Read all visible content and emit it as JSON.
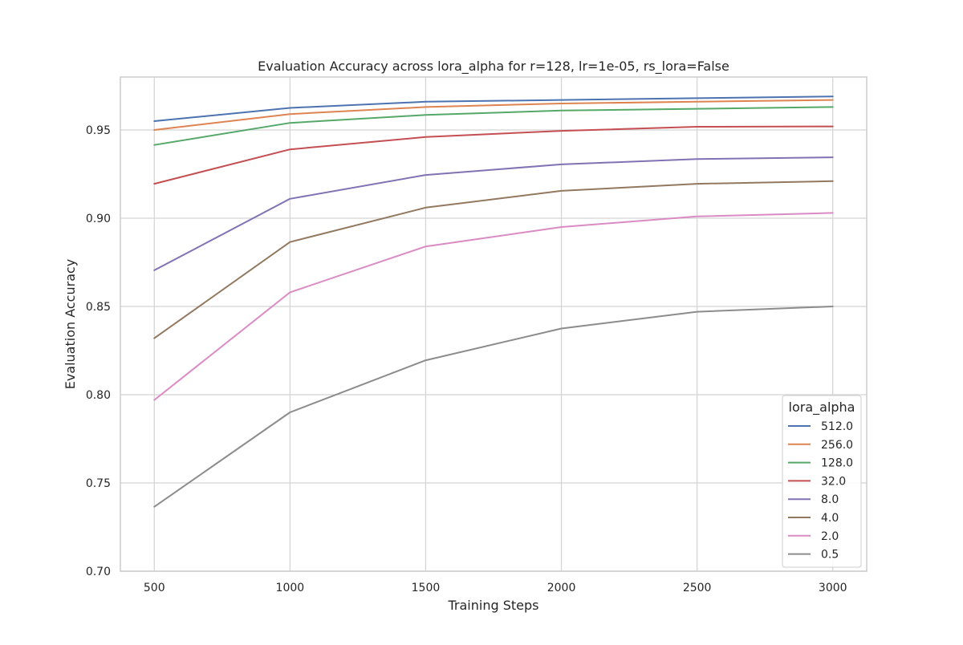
{
  "chart_data": {
    "type": "line",
    "title": "Evaluation Accuracy across lora_alpha for r=128, lr=1e-05, rs_lora=False",
    "xlabel": "Training Steps",
    "ylabel": "Evaluation Accuracy",
    "x": [
      500,
      1000,
      1500,
      2000,
      2500,
      3000
    ],
    "xlim": [
      375,
      3125
    ],
    "ylim": [
      0.7,
      0.98
    ],
    "xticks": [
      "500",
      "1000",
      "1500",
      "2000",
      "2500",
      "3000"
    ],
    "yticks": [
      "0.70",
      "0.75",
      "0.80",
      "0.85",
      "0.90",
      "0.95"
    ],
    "grid": true,
    "legend": {
      "title": "lora_alpha",
      "position": "lower-right"
    },
    "series": [
      {
        "name": "512.0",
        "color": "#4C72B0",
        "values": [
          0.955,
          0.9625,
          0.966,
          0.967,
          0.968,
          0.969
        ]
      },
      {
        "name": "256.0",
        "color": "#DD8452",
        "values": [
          0.95,
          0.959,
          0.963,
          0.965,
          0.966,
          0.967
        ]
      },
      {
        "name": "128.0",
        "color": "#55A868",
        "values": [
          0.9415,
          0.954,
          0.9585,
          0.961,
          0.962,
          0.963
        ]
      },
      {
        "name": "32.0",
        "color": "#C44E52",
        "values": [
          0.9195,
          0.939,
          0.946,
          0.9495,
          0.9518,
          0.952
        ]
      },
      {
        "name": "8.0",
        "color": "#8172B3",
        "values": [
          0.8705,
          0.911,
          0.9245,
          0.9305,
          0.9335,
          0.9345
        ]
      },
      {
        "name": "4.0",
        "color": "#937860",
        "values": [
          0.832,
          0.8865,
          0.906,
          0.9155,
          0.9195,
          0.921
        ]
      },
      {
        "name": "2.0",
        "color": "#DA8BC3",
        "values": [
          0.797,
          0.858,
          0.884,
          0.895,
          0.901,
          0.903
        ]
      },
      {
        "name": "0.5",
        "color": "#8C8C8C",
        "values": [
          0.7365,
          0.79,
          0.8195,
          0.8375,
          0.847,
          0.85
        ]
      }
    ]
  }
}
